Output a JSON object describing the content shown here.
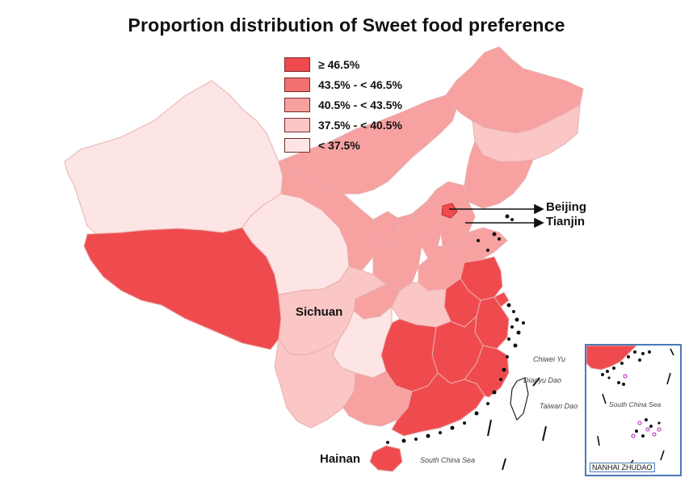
{
  "title": "Proportion distribution of Sweet food preference",
  "legend": [
    {
      "label": "≥ 46.5%",
      "color": "#ef4b4e"
    },
    {
      "label": "43.5% - < 46.5%",
      "color": "#f36f70"
    },
    {
      "label": "40.5% - < 43.5%",
      "color": "#f7a1a1"
    },
    {
      "label": "37.5% - < 40.5%",
      "color": "#fbc6c6"
    },
    {
      "label": "< 37.5%",
      "color": "#fde5e5"
    }
  ],
  "callouts": {
    "beijing": "Beijing",
    "tianjin": "Tianjin",
    "sichuan": "Sichuan",
    "hainan": "Hainan"
  },
  "map_labels": {
    "chiwei": "Chiwei Yu",
    "diaoyu": "Diaoyu Dao",
    "taiwan": "Taiwan Dao",
    "scs_main": "South China Sea",
    "scs_inset": "South China Sea",
    "nanhai": "NANHAI ZHUDAO"
  }
}
